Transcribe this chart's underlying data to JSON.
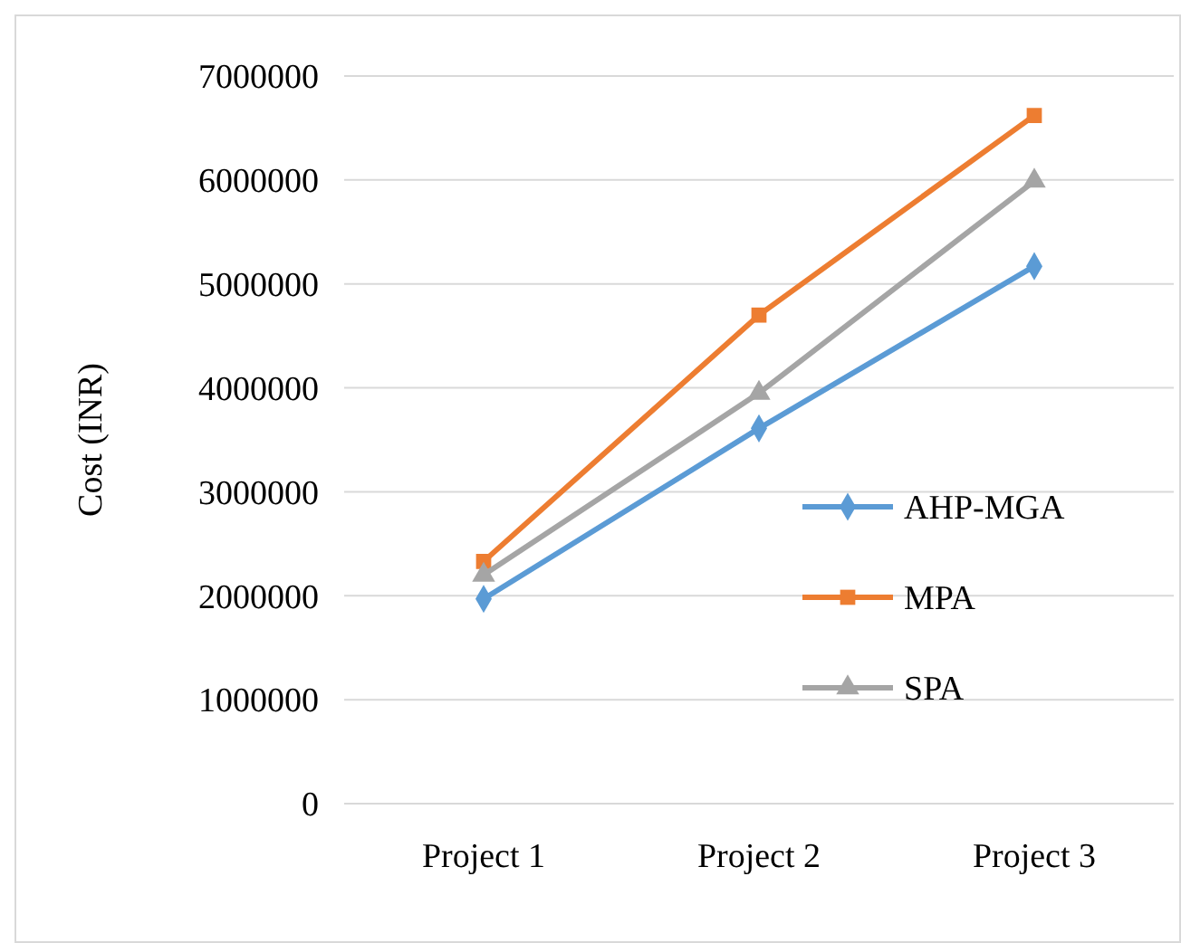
{
  "chart_data": {
    "type": "line",
    "ylabel": "Cost (INR)",
    "categories": [
      "Project 1",
      "Project 2",
      "Project 3"
    ],
    "series": [
      {
        "name": "AHP-MGA",
        "color": "#5b9bd5",
        "marker": "diamond",
        "values": [
          1970000,
          3610000,
          5170000
        ]
      },
      {
        "name": "MPA",
        "color": "#ed7d31",
        "marker": "square",
        "values": [
          2330000,
          4700000,
          6620000
        ]
      },
      {
        "name": "SPA",
        "color": "#a5a5a5",
        "marker": "triangle",
        "values": [
          2200000,
          3950000,
          5990000
        ]
      }
    ],
    "ylim": [
      0,
      7000000
    ],
    "yticks": [
      0,
      1000000,
      2000000,
      3000000,
      4000000,
      5000000,
      6000000,
      7000000
    ],
    "grid": "y",
    "legend": "right",
    "line_style": "solid"
  }
}
